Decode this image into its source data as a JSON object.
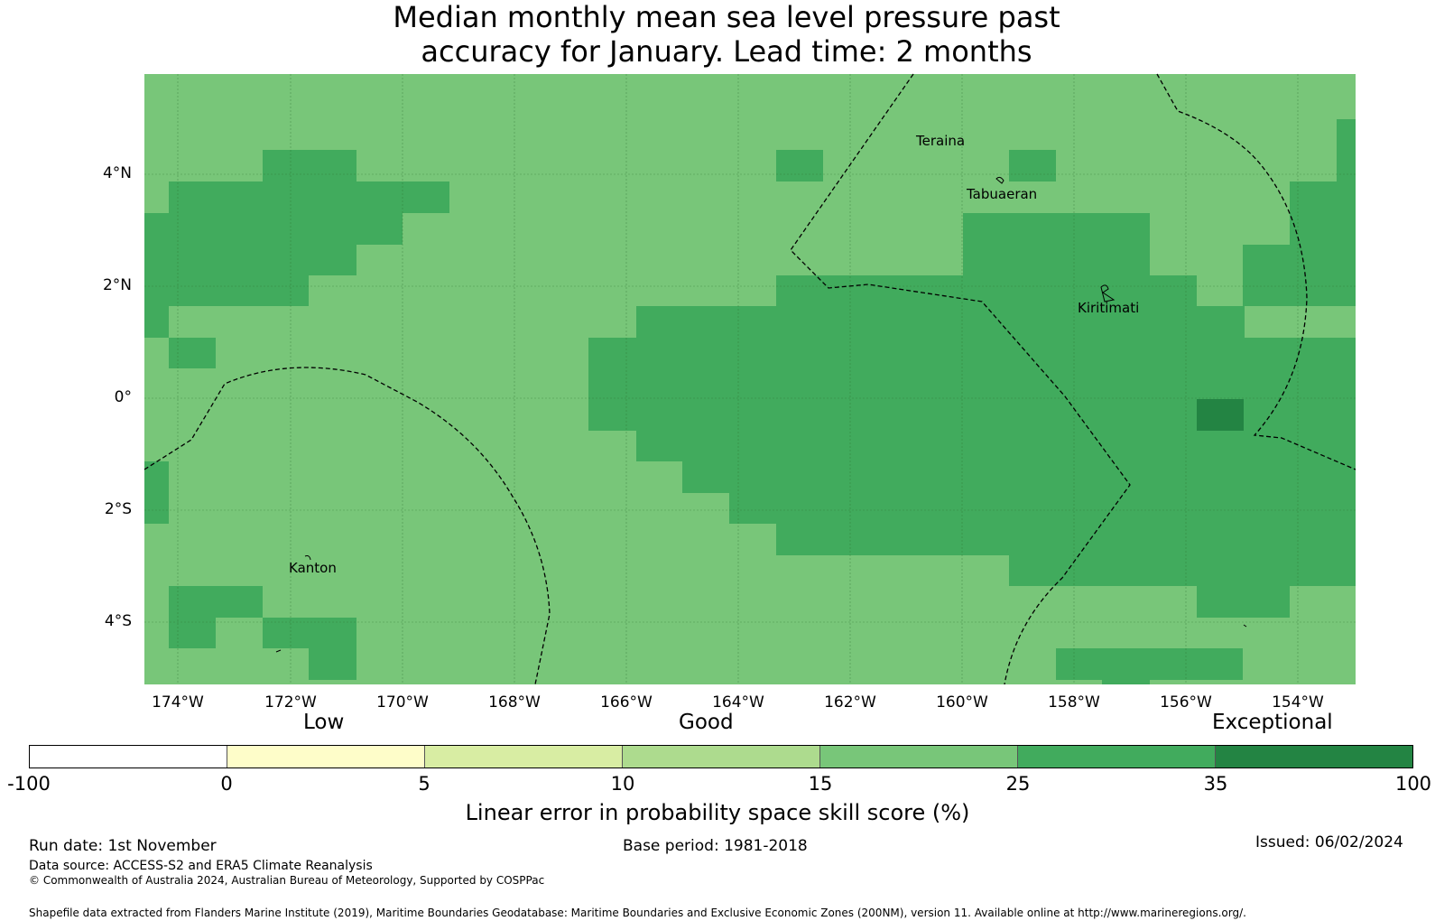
{
  "title_line1": "Median monthly mean sea level pressure past",
  "title_line2": "accuracy for January. Lead time: 2 months",
  "y_labels": [
    "4°N",
    "2°N",
    "0°",
    "2°S",
    "4°S"
  ],
  "x_labels": [
    "174°W",
    "172°W",
    "170°W",
    "168°W",
    "166°W",
    "164°W",
    "162°W",
    "160°W",
    "158°W",
    "156°W",
    "154°W"
  ],
  "places": {
    "teraina": "Teraina",
    "tabuaeran": "Tabuaeran",
    "kiritimati": "Kiritimati",
    "kanton": "Kanton"
  },
  "categories": {
    "low": "Low",
    "good": "Good",
    "exceptional": "Exceptional"
  },
  "colorbar": {
    "colors": [
      "#ffffff",
      "#fefdc9",
      "#d8eda3",
      "#addb8e",
      "#78c679",
      "#41ab5d",
      "#238443"
    ],
    "ticks": [
      "-100",
      "0",
      "5",
      "10",
      "15",
      "25",
      "35",
      "100"
    ],
    "label": "Linear error in probability space skill score (%)"
  },
  "footer": {
    "run_date": "Run date: 1st November",
    "base_period": "Base period: 1981-2018",
    "issued": "Issued: 06/02/2024",
    "data_source": "Data source: ACCESS-S2 and ERA5 Climate Reanalysis",
    "copyright": "© Commonwealth of Australia 2024, Australian Bureau of Meteorology, Supported by COSPPac",
    "shapefile": "Shapefile data extracted from Flanders Marine Institute (2019), Maritime Boundaries Geodatabase: Maritime Boundaries and Exclusive Economic Zones (200NM), version 11. Available online at http://www.marineregions.org/."
  }
}
